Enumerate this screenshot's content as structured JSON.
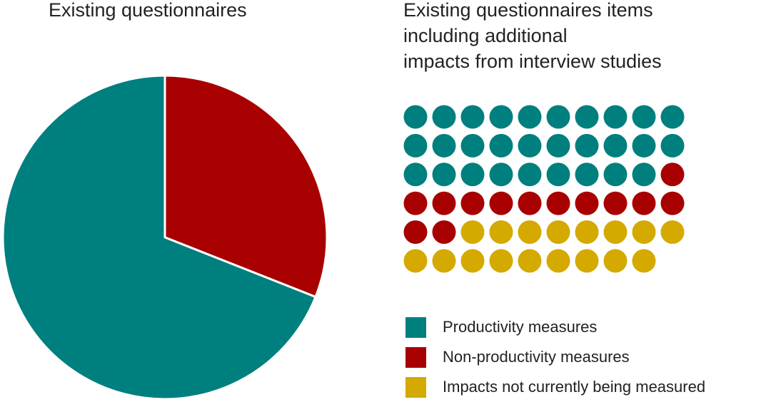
{
  "colors": {
    "productivity": "#007f7f",
    "non_productivity": "#a80000",
    "not_measured": "#d4a900"
  },
  "chart_data": [
    {
      "type": "pie",
      "title": "Existing questionnaires",
      "slices": [
        {
          "name": "Non-productivity measures",
          "value": 31,
          "color_key": "non_productivity"
        },
        {
          "name": "Productivity measures",
          "value": 69,
          "color_key": "productivity"
        }
      ]
    },
    {
      "type": "waffle",
      "title_lines": [
        "Existing questionnaires items",
        "including additional",
        "impacts from interview studies"
      ],
      "columns": 10,
      "categories": [
        {
          "name": "Productivity measures",
          "count": 29,
          "color_key": "productivity"
        },
        {
          "name": "Non-productivity measures",
          "count": 13,
          "color_key": "non_productivity"
        },
        {
          "name": "Impacts not currently being measured",
          "count": 17,
          "color_key": "not_measured"
        }
      ]
    }
  ],
  "legend": [
    {
      "label": "Productivity measures",
      "color_key": "productivity"
    },
    {
      "label": "Non-productivity measures",
      "color_key": "non_productivity"
    },
    {
      "label": "Impacts not currently being measured",
      "color_key": "not_measured"
    }
  ]
}
